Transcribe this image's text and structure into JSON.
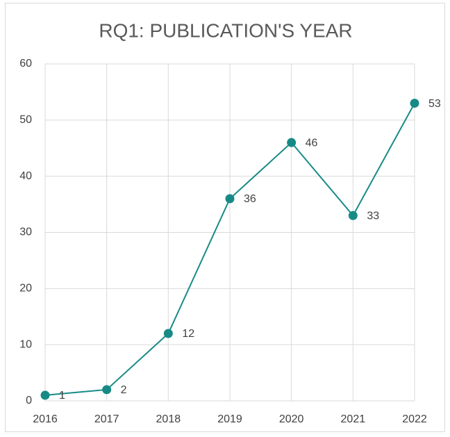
{
  "chart_data": {
    "type": "line",
    "title": "RQ1: PUBLICATION'S YEAR",
    "categories": [
      "2016",
      "2017",
      "2018",
      "2019",
      "2020",
      "2021",
      "2022"
    ],
    "values": [
      1,
      2,
      12,
      36,
      46,
      33,
      53
    ],
    "color": "#178a86",
    "ylim": [
      0,
      60
    ],
    "yticks": [
      0,
      10,
      20,
      30,
      40,
      50,
      60
    ],
    "grid": true
  }
}
